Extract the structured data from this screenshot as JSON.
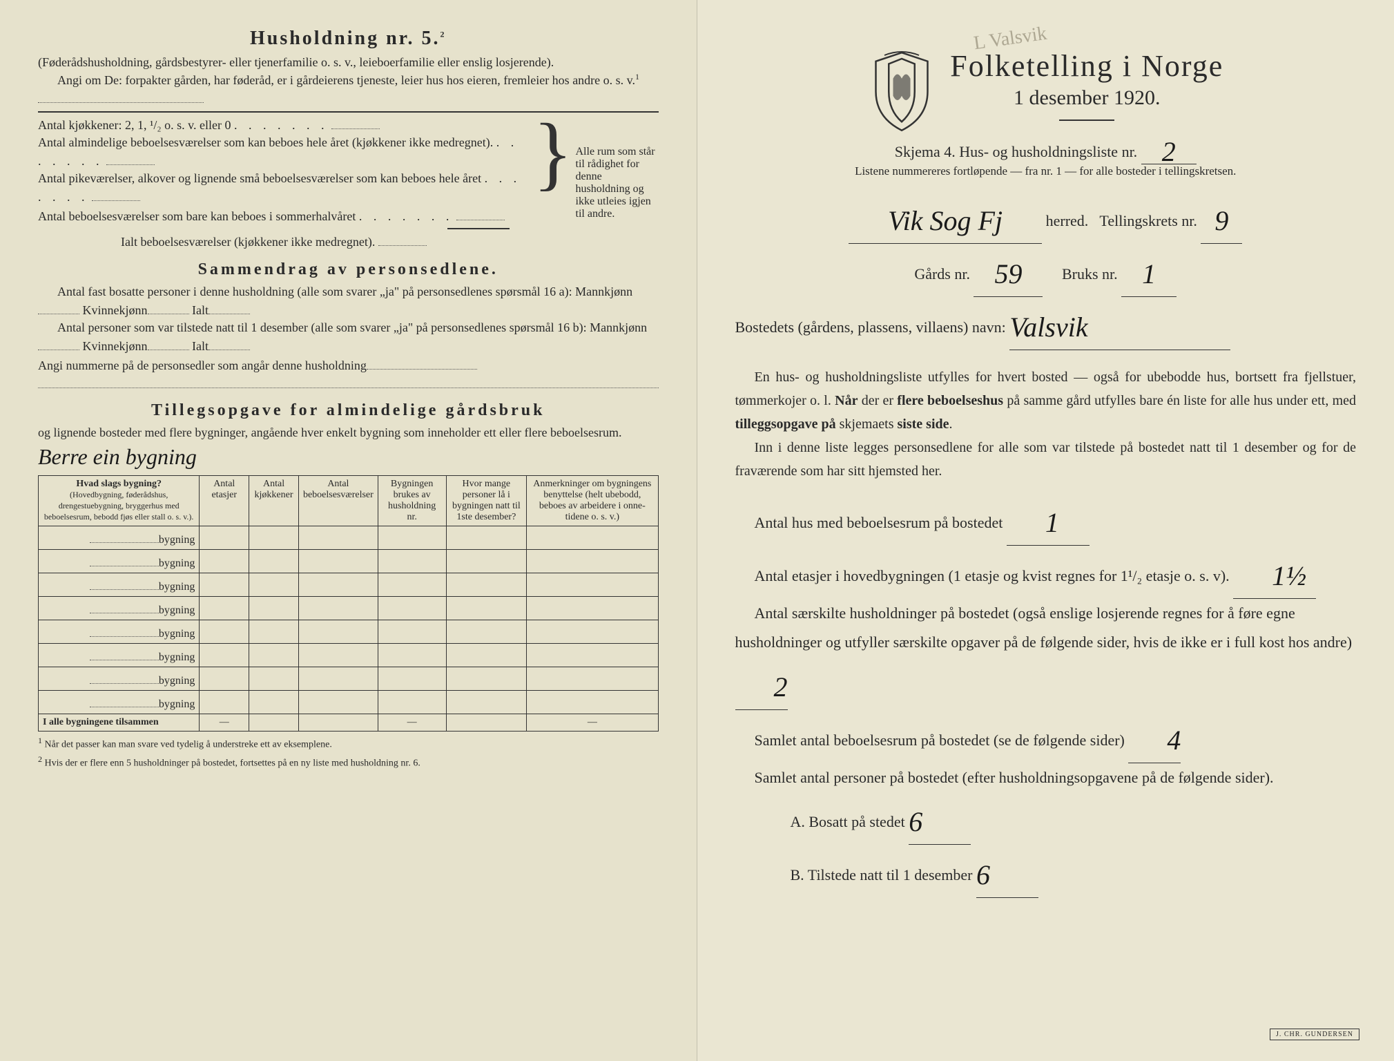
{
  "left": {
    "h5_title": "Husholdning nr. 5.",
    "h5_sup": "2",
    "h5_p1": "(Føderådshusholdning, gårdsbestyrer- eller tjenerfamilie o. s. v., leieboerfamilie eller enslig losjerende).",
    "h5_p2a": "Angi om De:  forpakter gården, har føderåd, er i gårdeierens tjeneste, leier hus hos eieren, fremleier hos andre o. s. v.",
    "h5_sup1": "1",
    "kjokkener": "Antal kjøkkener: 2, 1, ¹/₂ o. s. v. eller 0",
    "alm1": "Antal almindelige beboelsesværelser som kan beboes hele året (kjøkkener ikke medregnet).",
    "alm2": "Antal pikeværelser, alkover og lignende små beboelsesværelser som kan beboes hele året",
    "alm3": "Antal beboelsesværelser som bare kan beboes i sommerhalvåret",
    "ialt": "Ialt beboelsesværelser  (kjøkkener ikke medregnet).",
    "brace_note": "Alle rum som står til rådighet for denne husholdning og ikke utleies igjen til andre.",
    "samm_title": "Sammendrag av personsedlene.",
    "samm1": "Antal fast bosatte personer i denne husholdning (alle som svarer „ja\" på personsedlenes spørsmål 16 a):  Mannkjønn",
    "samm_kv": "Kvinnekjønn",
    "samm_ialt": "Ialt",
    "samm2": "Antal personer som var tilstede natt til 1 desember (alle som svarer „ja\" på personsedlenes spørsmål 16 b):  Mannkjønn",
    "angi": "Angi nummerne på de personsedler som angår denne husholdning",
    "till_title": "Tillegsopgave for almindelige gårdsbruk",
    "till_sub": "og lignende bosteder med flere bygninger, angående hver enkelt bygning som inneholder ett eller flere beboelsesrum.",
    "till_hand": "Berre ein bygning",
    "th1": "Hvad slags bygning?",
    "th1_sub": "(Hovedbygning, føderådshus, drengestuebygning, bryggerhus med beboelsesrum, bebodd fjøs eller stall o. s. v.).",
    "th2": "Antal etasjer",
    "th3": "Antal kjøkkener",
    "th4": "Antal beboelsesværelser",
    "th5": "Bygningen brukes av husholdning nr.",
    "th6": "Hvor mange personer lå i bygningen natt til 1ste desember?",
    "th7": "Anmerkninger om bygningens benyttelse (helt ubebodd, beboes av arbeidere i onne-tidene o. s. v.)",
    "row_label": "bygning",
    "sum_row": "I alle bygningene tilsammen",
    "fn1": "Når det passer kan man svare ved tydelig å understreke ett av eksemplene.",
    "fn2": "Hvis der er flere enn 5 husholdninger på bostedet, fortsettes på en ny liste med husholdning nr. 6."
  },
  "right": {
    "pale_annot": "L Valsvik",
    "title": "Folketelling i Norge",
    "date": "1 desember 1920.",
    "skjema": "Skjema 4.  Hus- og husholdningsliste nr.",
    "skjema_val": "2",
    "listene": "Listene nummereres fortløpende — fra nr. 1 — for alle bosteder i tellingskretsen.",
    "herred_val": "Vik Sog Fj",
    "herred_lbl": "herred.",
    "krets_lbl": "Tellingskrets nr.",
    "krets_val": "9",
    "gard_lbl": "Gårds nr.",
    "gard_val": "59",
    "bruk_lbl": "Bruks nr.",
    "bruk_val": "1",
    "bosted_lbl": "Bostedets (gårdens, plassens, villaens) navn:",
    "bosted_val": "Valsvik",
    "p1": "En hus- og husholdningsliste utfylles for hvert bosted — også for ubebodde hus, bortsett fra fjellstuer, tømmerkojer o. l.  Når der er flere beboelseshus på samme gård utfylles bare én liste for alle hus under ett, med tilleggsopgave på skjemaets siste side.",
    "p2": "Inn i denne liste legges personsedlene for alle som var tilstede på bostedet natt til 1 desember og for de fraværende som har sitt hjemsted her.",
    "q1": "Antal hus med beboelsesrum på bostedet",
    "q1_val": "1",
    "q2a": "Antal etasjer i hovedbygningen (1 etasje og kvist regnes for 1¹/₂ etasje o. s. v).",
    "q2_val": "1½",
    "q3": "Antal særskilte husholdninger på bostedet (også enslige losjerende regnes for å føre egne husholdninger og utfyller særskilte opgaver på de følgende sider, hvis de ikke er i full kost hos andre)",
    "q3_val": "2",
    "q4": "Samlet antal beboelsesrum på bostedet (se de følgende sider)",
    "q4_val": "4",
    "q5": "Samlet antal personer på bostedet (efter husholdningsopgavene på de følgende sider).",
    "qA": "A.  Bosatt på stedet",
    "qA_val": "6",
    "qB": "B.  Tilstede natt til 1 desember",
    "qB_val": "6",
    "stamp": "J. CHR. GUNDERSEN"
  },
  "colors": {
    "paper": "#e8e4d0",
    "ink": "#2a2a2a"
  }
}
